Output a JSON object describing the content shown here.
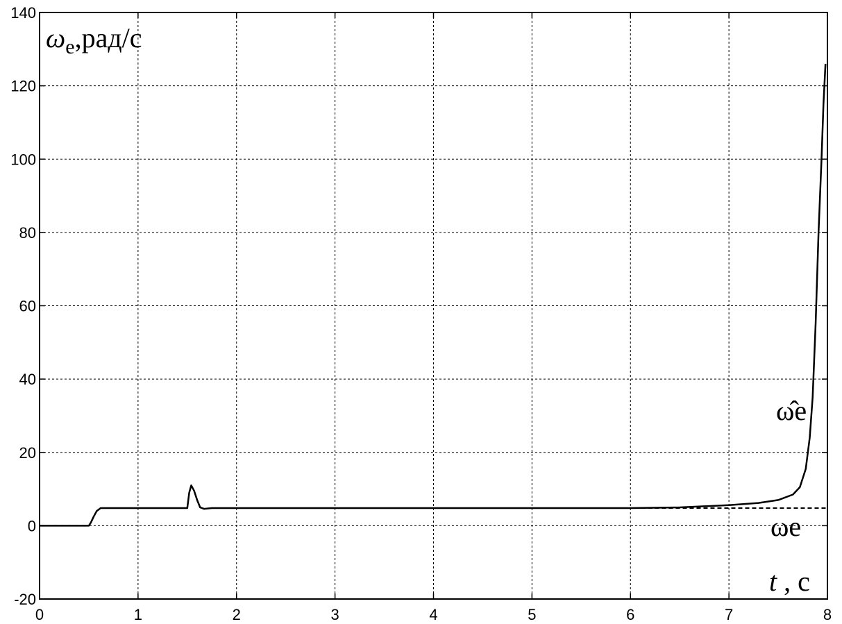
{
  "chart_data": {
    "type": "line",
    "xlabel": {
      "var": "t",
      "sep": " ,",
      "unit": "c"
    },
    "ylabel": {
      "var": "ω",
      "sub": "e",
      "unit": ",рад/с"
    },
    "xlim": [
      0,
      8
    ],
    "ylim": [
      -20,
      140
    ],
    "x_ticks": [
      "0",
      "1",
      "2",
      "3",
      "4",
      "5",
      "6",
      "7",
      "8"
    ],
    "y_ticks": [
      "-20",
      "0",
      "20",
      "40",
      "60",
      "80",
      "100",
      "120",
      "140"
    ],
    "grid": true,
    "series": [
      {
        "label": "ω̂e",
        "style": "solid",
        "points": [
          [
            0,
            0
          ],
          [
            0.5,
            0
          ],
          [
            0.52,
            0.8
          ],
          [
            0.55,
            2.5
          ],
          [
            0.58,
            4.0
          ],
          [
            0.62,
            4.8
          ],
          [
            1.5,
            4.8
          ],
          [
            1.52,
            9.0
          ],
          [
            1.54,
            11.0
          ],
          [
            1.57,
            9.5
          ],
          [
            1.6,
            7.0
          ],
          [
            1.63,
            5.0
          ],
          [
            1.67,
            4.6
          ],
          [
            1.75,
            4.8
          ],
          [
            6.0,
            4.8
          ],
          [
            6.5,
            5.0
          ],
          [
            7.0,
            5.6
          ],
          [
            7.3,
            6.2
          ],
          [
            7.5,
            7.0
          ],
          [
            7.65,
            8.5
          ],
          [
            7.72,
            10.5
          ],
          [
            7.78,
            15.5
          ],
          [
            7.82,
            24.0
          ],
          [
            7.85,
            35.0
          ],
          [
            7.88,
            55.0
          ],
          [
            7.91,
            80.0
          ],
          [
            7.94,
            100.0
          ],
          [
            7.96,
            115.0
          ],
          [
            7.98,
            126.0
          ]
        ]
      },
      {
        "label": "ωe",
        "style": "dashed",
        "points": [
          [
            0,
            0
          ],
          [
            0.5,
            0
          ],
          [
            0.52,
            0.8
          ],
          [
            0.55,
            2.5
          ],
          [
            0.58,
            4.0
          ],
          [
            0.62,
            4.8
          ],
          [
            1.5,
            4.8
          ],
          [
            1.52,
            9.0
          ],
          [
            1.54,
            11.0
          ],
          [
            1.57,
            9.5
          ],
          [
            1.6,
            7.0
          ],
          [
            1.63,
            5.0
          ],
          [
            1.67,
            4.6
          ],
          [
            1.75,
            4.8
          ],
          [
            8.0,
            4.8
          ]
        ]
      }
    ]
  }
}
